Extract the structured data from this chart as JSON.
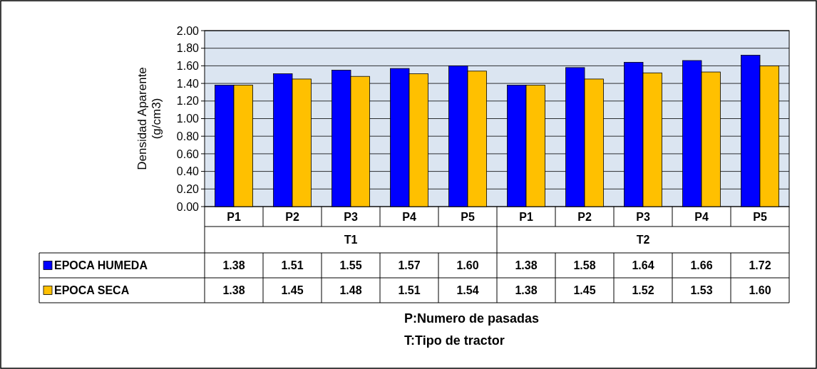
{
  "chart_data": {
    "type": "bar",
    "ylabel": "Densidad Aparente (g/cm3)",
    "categories": [
      "P1",
      "P2",
      "P3",
      "P4",
      "P5",
      "P1",
      "P2",
      "P3",
      "P4",
      "P5"
    ],
    "series": [
      {
        "name": "EPOCA HUMEDA",
        "color": "#0000ff",
        "values": [
          1.38,
          1.51,
          1.55,
          1.57,
          1.6,
          1.38,
          1.58,
          1.64,
          1.66,
          1.72
        ],
        "value_labels": [
          "1.38",
          "1.51",
          "1.55",
          "1.57",
          "1.60",
          "1.38",
          "1.58",
          "1.64",
          "1.66",
          "1.72"
        ]
      },
      {
        "name": "EPOCA SECA",
        "color": "#ffc000",
        "values": [
          1.38,
          1.45,
          1.48,
          1.51,
          1.54,
          1.38,
          1.45,
          1.52,
          1.53,
          1.6
        ],
        "value_labels": [
          "1.38",
          "1.45",
          "1.48",
          "1.51",
          "1.54",
          "1.38",
          "1.45",
          "1.52",
          "1.53",
          "1.60"
        ]
      }
    ],
    "ylim": [
      0,
      2
    ],
    "yticks": [
      {
        "value": 0,
        "label": "0.00"
      },
      {
        "value": 0.2,
        "label": "0.20"
      },
      {
        "value": 0.4,
        "label": "0.40"
      },
      {
        "value": 0.6,
        "label": "0.60"
      },
      {
        "value": 0.8,
        "label": "0.80"
      },
      {
        "value": 1,
        "label": "1.00"
      },
      {
        "value": 1.2,
        "label": "1.20"
      },
      {
        "value": 1.4,
        "label": "1.40"
      },
      {
        "value": 1.6,
        "label": "1.60"
      },
      {
        "value": 1.8,
        "label": "1.80"
      },
      {
        "value": 2,
        "label": "2.00"
      }
    ],
    "grid": "y",
    "legend": "bottom left",
    "annotations": [
      "T1",
      "T2",
      "P:Numero de pasadas",
      "T:Tipo de tractor"
    ]
  }
}
